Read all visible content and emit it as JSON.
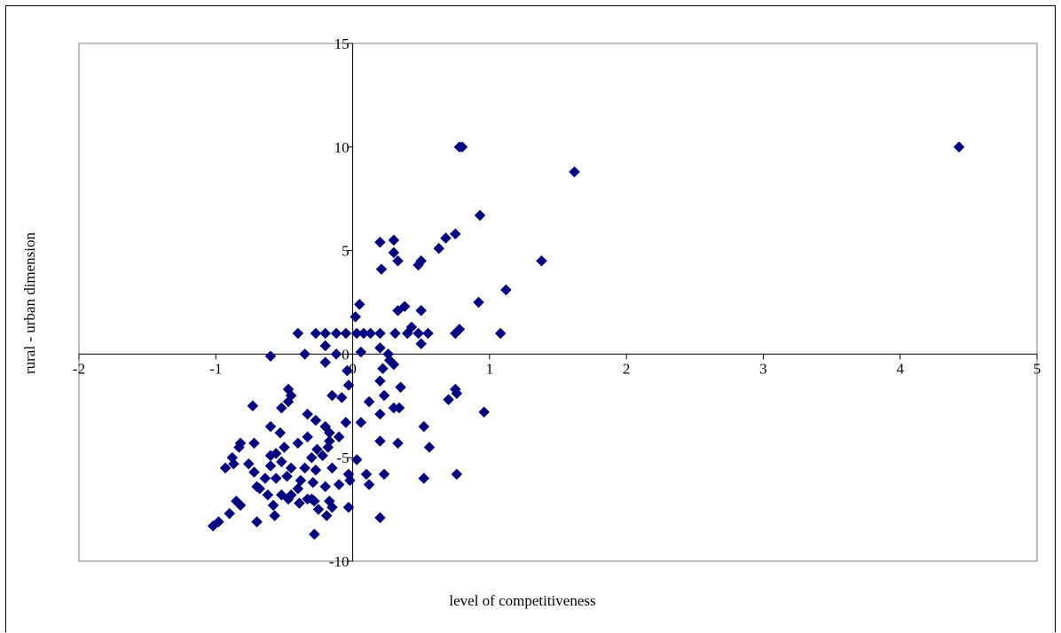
{
  "chart_data": {
    "type": "scatter",
    "title": "",
    "xlabel": "level of competitiveness",
    "ylabel": "rural - urban dimension",
    "xlim": [
      -2,
      5
    ],
    "ylim": [
      -10,
      15
    ],
    "x_ticks": [
      "-2",
      "-1",
      "0",
      "1",
      "2",
      "3",
      "4",
      "5"
    ],
    "y_ticks": [
      "15",
      "10",
      "5",
      "0",
      "-5",
      "-10"
    ],
    "grid": false,
    "legend": "none",
    "marker": "diamond",
    "marker_color": "#000080",
    "series": [
      {
        "points": [
          [
            4.43,
            10
          ],
          [
            0.78,
            10
          ],
          [
            0.8,
            10
          ],
          [
            1.62,
            8.8
          ],
          [
            0.93,
            6.7
          ],
          [
            1.38,
            4.5
          ],
          [
            0.75,
            5.8
          ],
          [
            0.68,
            5.6
          ],
          [
            0.63,
            5.1
          ],
          [
            0.2,
            5.4
          ],
          [
            0.3,
            5.5
          ],
          [
            0.3,
            4.9
          ],
          [
            0.33,
            4.5
          ],
          [
            0.48,
            4.3
          ],
          [
            0.5,
            4.5
          ],
          [
            0.21,
            4.1
          ],
          [
            1.12,
            3.1
          ],
          [
            0.92,
            2.5
          ],
          [
            0.05,
            2.4
          ],
          [
            0.38,
            2.3
          ],
          [
            0.33,
            2.1
          ],
          [
            0.5,
            2.1
          ],
          [
            0.02,
            1.8
          ],
          [
            -0.4,
            1.0
          ],
          [
            -0.27,
            1.0
          ],
          [
            -0.2,
            1.0
          ],
          [
            -0.12,
            1.0
          ],
          [
            -0.05,
            1.0
          ],
          [
            0.03,
            1.0
          ],
          [
            0.08,
            1.0
          ],
          [
            0.13,
            1.0
          ],
          [
            0.2,
            1.0
          ],
          [
            0.31,
            1.0
          ],
          [
            0.4,
            1.0
          ],
          [
            0.48,
            1.0
          ],
          [
            0.55,
            1.0
          ],
          [
            0.75,
            1.0
          ],
          [
            1.08,
            1.0
          ],
          [
            0.78,
            1.2
          ],
          [
            0.43,
            1.3
          ],
          [
            -0.2,
            0.4
          ],
          [
            0.5,
            0.5
          ],
          [
            -0.35,
            0.0
          ],
          [
            -0.12,
            0.0
          ],
          [
            0.06,
            0.1
          ],
          [
            0.2,
            0.3
          ],
          [
            0.26,
            0.0
          ],
          [
            -0.6,
            -0.1
          ],
          [
            -0.2,
            -0.4
          ],
          [
            0.27,
            -0.3
          ],
          [
            0.3,
            -0.5
          ],
          [
            0.22,
            -0.7
          ],
          [
            -0.04,
            -0.8
          ],
          [
            -0.03,
            -1.5
          ],
          [
            0.2,
            -1.3
          ],
          [
            0.35,
            -1.6
          ],
          [
            0.75,
            -1.7
          ],
          [
            0.76,
            -1.9
          ],
          [
            0.7,
            -2.2
          ],
          [
            0.96,
            -2.8
          ],
          [
            -0.47,
            -1.7
          ],
          [
            -0.45,
            -2.0
          ],
          [
            -0.47,
            -2.3
          ],
          [
            -0.52,
            -2.6
          ],
          [
            -0.15,
            -2.0
          ],
          [
            -0.08,
            -2.1
          ],
          [
            0.12,
            -2.3
          ],
          [
            0.23,
            -2.0
          ],
          [
            0.3,
            -2.6
          ],
          [
            0.34,
            -2.6
          ],
          [
            0.2,
            -2.9
          ],
          [
            -0.73,
            -2.5
          ],
          [
            -0.33,
            -2.9
          ],
          [
            -0.27,
            -3.2
          ],
          [
            -0.2,
            -3.5
          ],
          [
            -0.17,
            -3.8
          ],
          [
            -0.05,
            -3.3
          ],
          [
            0.06,
            -3.3
          ],
          [
            -0.6,
            -3.5
          ],
          [
            -0.53,
            -3.8
          ],
          [
            -0.33,
            -4.0
          ],
          [
            -0.17,
            -4.2
          ],
          [
            -0.1,
            -4.0
          ],
          [
            0.52,
            -3.5
          ],
          [
            0.2,
            -4.2
          ],
          [
            0.33,
            -4.3
          ],
          [
            -0.82,
            -4.3
          ],
          [
            -0.83,
            -4.5
          ],
          [
            -0.72,
            -4.3
          ],
          [
            -0.5,
            -4.5
          ],
          [
            -0.4,
            -4.3
          ],
          [
            -0.26,
            -4.6
          ],
          [
            -0.18,
            -4.5
          ],
          [
            -0.56,
            -4.8
          ],
          [
            -0.6,
            -4.9
          ],
          [
            -0.52,
            -5.2
          ],
          [
            -0.22,
            -4.9
          ],
          [
            -0.3,
            -5.0
          ],
          [
            0.03,
            -5.1
          ],
          [
            0.56,
            -4.5
          ],
          [
            -0.88,
            -5.0
          ],
          [
            -0.87,
            -5.3
          ],
          [
            -0.76,
            -5.3
          ],
          [
            -0.6,
            -5.4
          ],
          [
            -0.45,
            -5.5
          ],
          [
            -0.35,
            -5.5
          ],
          [
            -0.27,
            -5.6
          ],
          [
            -0.15,
            -5.5
          ],
          [
            -0.03,
            -5.8
          ],
          [
            0.1,
            -5.8
          ],
          [
            0.23,
            -5.8
          ],
          [
            -0.72,
            -5.7
          ],
          [
            -0.64,
            -6.0
          ],
          [
            -0.56,
            -6.0
          ],
          [
            -0.48,
            -5.9
          ],
          [
            -0.38,
            -6.1
          ],
          [
            -0.29,
            -6.2
          ],
          [
            -0.2,
            -6.4
          ],
          [
            -0.1,
            -6.3
          ],
          [
            -0.02,
            -6.1
          ],
          [
            0.12,
            -6.3
          ],
          [
            -0.7,
            -6.4
          ],
          [
            -0.62,
            -6.8
          ],
          [
            -0.52,
            -6.8
          ],
          [
            -0.47,
            -7.0
          ],
          [
            -0.39,
            -7.2
          ],
          [
            -0.28,
            -7.1
          ],
          [
            -0.17,
            -7.1
          ],
          [
            -0.03,
            -7.4
          ],
          [
            -0.33,
            -7.0
          ],
          [
            -0.58,
            -7.3
          ],
          [
            -0.25,
            -7.5
          ],
          [
            -0.85,
            -7.1
          ],
          [
            -0.82,
            -7.3
          ],
          [
            -0.9,
            -7.7
          ],
          [
            -0.7,
            -8.1
          ],
          [
            -0.57,
            -7.8
          ],
          [
            -0.19,
            -7.8
          ],
          [
            0.2,
            -7.9
          ],
          [
            -0.98,
            -8.1
          ],
          [
            -1.02,
            -8.3
          ],
          [
            -0.28,
            -8.7
          ],
          [
            0.52,
            -6.0
          ],
          [
            0.76,
            -5.8
          ],
          [
            -0.93,
            -5.5
          ],
          [
            -0.68,
            -6.5
          ],
          [
            -0.45,
            -6.8
          ],
          [
            -0.3,
            -7.0
          ],
          [
            -0.15,
            -7.4
          ],
          [
            -0.4,
            -6.5
          ]
        ]
      }
    ]
  }
}
